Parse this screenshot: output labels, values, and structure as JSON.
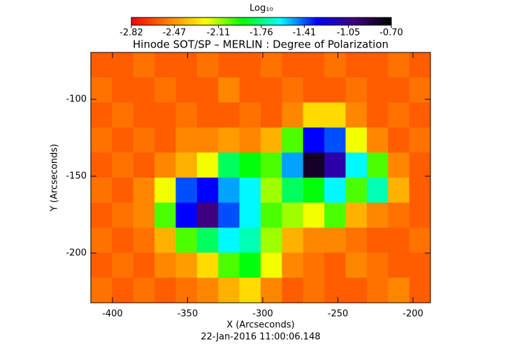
{
  "chart_data": {
    "type": "heatmap",
    "title": "Hinode SOT/SP – MERLIN : Degree of Polarization",
    "x_label": "X (Arcseconds)",
    "y_label": "Y (Arcseconds)",
    "footer": "22-Jan-2016 11:00:06.148",
    "colorbar_label": "Log₁₀",
    "xlim": [
      -414.4,
      -188.4
    ],
    "ylim": [
      -232.3,
      -69.5
    ],
    "xticks": [
      -400,
      -350,
      -300,
      -250,
      -200
    ],
    "yticks": [
      -100,
      -150,
      -200
    ],
    "colorbar_lim": [
      -2.82,
      -0.7
    ],
    "colorbar_ticks": [
      -2.82,
      -2.47,
      -2.11,
      -1.76,
      -1.41,
      -1.05,
      {
        "value": -0.7,
        "label": "-0.70"
      }
    ],
    "colormap": [
      "#ff0000",
      "#ff8000",
      "#ffff00",
      "#00ff00",
      "#00ffff",
      "#0000ff",
      "#400080",
      "#000000"
    ],
    "values": [
      [
        -2.6,
        -2.6,
        -2.55,
        -2.6,
        -2.6,
        -2.55,
        -2.6,
        -2.6,
        -2.55,
        -2.6,
        -2.6,
        -2.55,
        -2.6,
        -2.6,
        -2.55,
        -2.6
      ],
      [
        -2.55,
        -2.6,
        -2.6,
        -2.55,
        -2.6,
        -2.6,
        -2.5,
        -2.6,
        -2.6,
        -2.55,
        -2.6,
        -2.6,
        -2.55,
        -2.6,
        -2.6,
        -2.55
      ],
      [
        -2.6,
        -2.55,
        -2.6,
        -2.6,
        -2.55,
        -2.6,
        -2.6,
        -2.55,
        -2.6,
        -2.5,
        -2.3,
        -2.3,
        -2.5,
        -2.6,
        -2.55,
        -2.6
      ],
      [
        -2.55,
        -2.6,
        -2.55,
        -2.6,
        -2.5,
        -2.5,
        -2.45,
        -2.5,
        -2.4,
        -2.0,
        -1.3,
        -1.4,
        -2.2,
        -2.5,
        -2.6,
        -2.55
      ],
      [
        -2.6,
        -2.55,
        -2.6,
        -2.5,
        -2.4,
        -2.2,
        -1.8,
        -1.9,
        -2.0,
        -1.5,
        -0.8,
        -1.1,
        -1.6,
        -2.0,
        -2.5,
        -2.6
      ],
      [
        -2.55,
        -2.6,
        -2.5,
        -2.2,
        -1.4,
        -1.3,
        -1.5,
        -1.6,
        -2.1,
        -1.8,
        -1.9,
        -1.6,
        -2.0,
        -1.7,
        -2.4,
        -2.6
      ],
      [
        -2.6,
        -2.55,
        -2.5,
        -2.0,
        -1.3,
        -1.0,
        -1.4,
        -1.6,
        -2.0,
        -2.1,
        -2.2,
        -2.0,
        -2.4,
        -2.5,
        -2.55,
        -2.6
      ],
      [
        -2.55,
        -2.6,
        -2.55,
        -2.4,
        -2.0,
        -1.8,
        -1.6,
        -1.7,
        -2.1,
        -2.4,
        -2.5,
        -2.5,
        -2.55,
        -2.6,
        -2.6,
        -2.55
      ],
      [
        -2.6,
        -2.55,
        -2.6,
        -2.5,
        -2.45,
        -2.3,
        -2.0,
        -1.9,
        -2.2,
        -2.5,
        -2.55,
        -2.6,
        -2.5,
        -2.55,
        -2.6,
        -2.6
      ],
      [
        -2.55,
        -2.6,
        -2.55,
        -2.6,
        -2.55,
        -2.5,
        -2.4,
        -2.3,
        -2.5,
        -2.6,
        -2.55,
        -2.6,
        -2.6,
        -2.55,
        -2.5,
        -2.6
      ]
    ]
  }
}
